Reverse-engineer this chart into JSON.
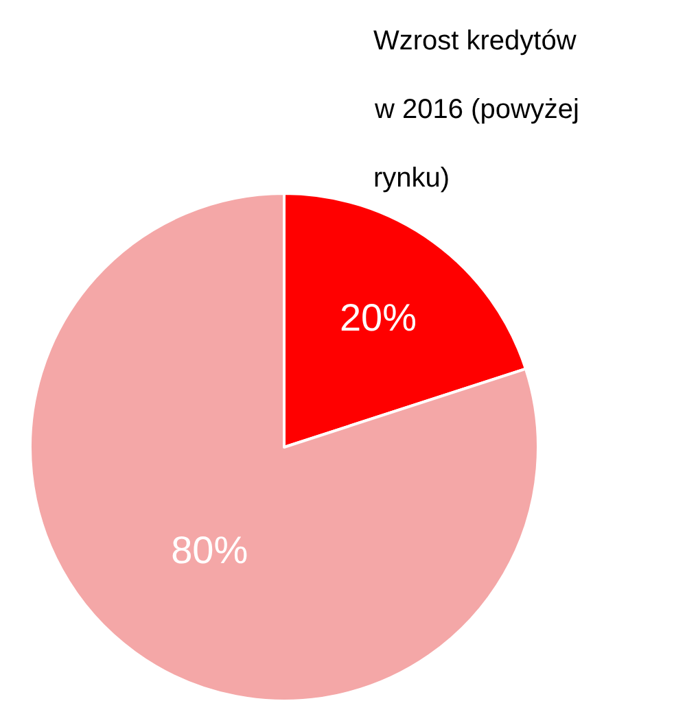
{
  "chart_data": {
    "type": "pie",
    "title": "Wzrost kredytów\nw 2016 (powyżej\nrynku)",
    "categories": [
      null,
      null
    ],
    "values": [
      20,
      80
    ],
    "colors": [
      "#ff0000",
      "#f4a7a7"
    ],
    "value_labels": [
      "20%",
      "80%"
    ],
    "legend": false
  }
}
